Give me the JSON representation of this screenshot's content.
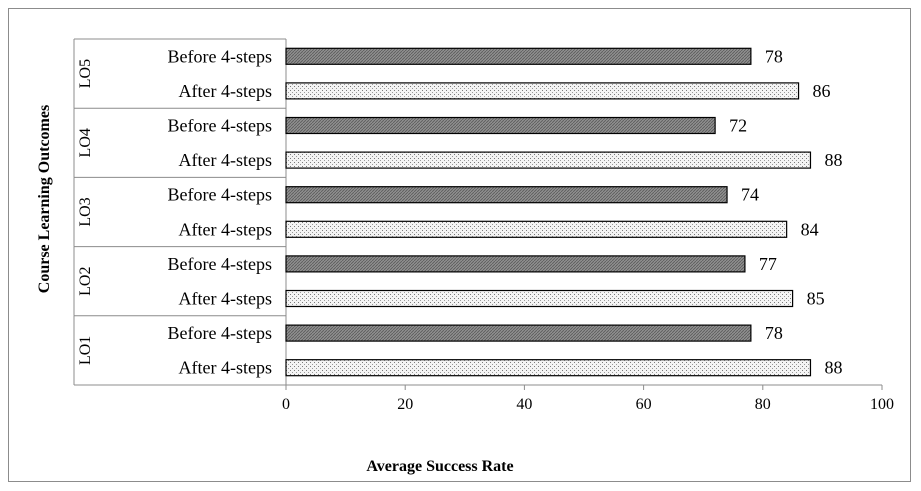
{
  "chart_data": {
    "type": "bar",
    "orientation": "horizontal",
    "title": "",
    "xlabel": "Average Success Rate",
    "ylabel": "Course Learning Outcomes",
    "xlim": [
      0,
      100
    ],
    "x_ticks": [
      "0",
      "20",
      "40",
      "60",
      "80",
      "100"
    ],
    "grid": false,
    "legend": "none",
    "groups": [
      {
        "name": "LO5",
        "bars": [
          {
            "label": "Before 4-steps",
            "value": 78,
            "display": "78",
            "style": "before"
          },
          {
            "label": "After 4-steps",
            "value": 86,
            "display": "86",
            "style": "after"
          }
        ]
      },
      {
        "name": "LO4",
        "bars": [
          {
            "label": "Before 4-steps",
            "value": 72,
            "display": "72",
            "style": "before"
          },
          {
            "label": "After 4-steps",
            "value": 88,
            "display": "88",
            "style": "after"
          }
        ]
      },
      {
        "name": "LO3",
        "bars": [
          {
            "label": "Before 4-steps",
            "value": 74,
            "display": "74",
            "style": "before"
          },
          {
            "label": "After 4-steps",
            "value": 84,
            "display": "84",
            "style": "after"
          }
        ]
      },
      {
        "name": "LO2",
        "bars": [
          {
            "label": "Before 4-steps",
            "value": 77,
            "display": "77",
            "style": "before"
          },
          {
            "label": "After 4-steps",
            "value": 85,
            "display": "85",
            "style": "after"
          }
        ]
      },
      {
        "name": "LO1",
        "bars": [
          {
            "label": "Before 4-steps",
            "value": 78,
            "display": "78",
            "style": "before"
          },
          {
            "label": "After 4-steps",
            "value": 88,
            "display": "88",
            "style": "after"
          }
        ]
      }
    ],
    "colors": {
      "before_fill": "#8f8f8f",
      "after_fill": "#f2f2f2",
      "bar_stroke": "#000000",
      "axis": "#8c8c8c",
      "text": "#000000"
    }
  }
}
